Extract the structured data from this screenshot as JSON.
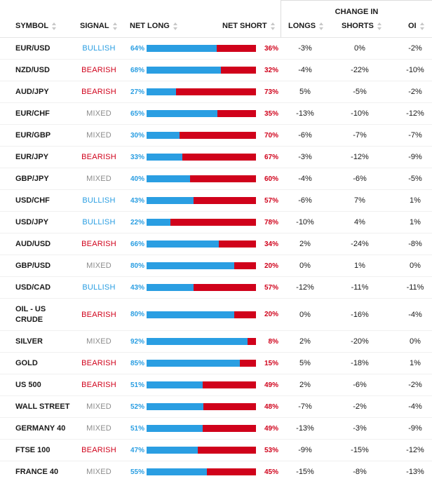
{
  "header": {
    "change_in": "CHANGE IN",
    "symbol": "SYMBOL",
    "signal": "SIGNAL",
    "net_long": "NET LONG",
    "net_short": "NET SHORT",
    "longs": "LONGS",
    "shorts": "SHORTS",
    "oi": "OI"
  },
  "colors": {
    "long": "#2a9ee2",
    "short": "#d0021b",
    "mixed": "#8c8c8c"
  },
  "rows": [
    {
      "symbol": "EUR/USD",
      "signal": "BULLISH",
      "net_long": "64%",
      "net_short": "36%",
      "long_pct": 64,
      "longs": "-3%",
      "shorts": "0%",
      "oi": "-2%"
    },
    {
      "symbol": "NZD/USD",
      "signal": "BEARISH",
      "net_long": "68%",
      "net_short": "32%",
      "long_pct": 68,
      "longs": "-4%",
      "shorts": "-22%",
      "oi": "-10%"
    },
    {
      "symbol": "AUD/JPY",
      "signal": "BEARISH",
      "net_long": "27%",
      "net_short": "73%",
      "long_pct": 27,
      "longs": "5%",
      "shorts": "-5%",
      "oi": "-2%"
    },
    {
      "symbol": "EUR/CHF",
      "signal": "MIXED",
      "net_long": "65%",
      "net_short": "35%",
      "long_pct": 65,
      "longs": "-13%",
      "shorts": "-10%",
      "oi": "-12%"
    },
    {
      "symbol": "EUR/GBP",
      "signal": "MIXED",
      "net_long": "30%",
      "net_short": "70%",
      "long_pct": 30,
      "longs": "-6%",
      "shorts": "-7%",
      "oi": "-7%"
    },
    {
      "symbol": "EUR/JPY",
      "signal": "BEARISH",
      "net_long": "33%",
      "net_short": "67%",
      "long_pct": 33,
      "longs": "-3%",
      "shorts": "-12%",
      "oi": "-9%"
    },
    {
      "symbol": "GBP/JPY",
      "signal": "MIXED",
      "net_long": "40%",
      "net_short": "60%",
      "long_pct": 40,
      "longs": "-4%",
      "shorts": "-6%",
      "oi": "-5%"
    },
    {
      "symbol": "USD/CHF",
      "signal": "BULLISH",
      "net_long": "43%",
      "net_short": "57%",
      "long_pct": 43,
      "longs": "-6%",
      "shorts": "7%",
      "oi": "1%"
    },
    {
      "symbol": "USD/JPY",
      "signal": "BULLISH",
      "net_long": "22%",
      "net_short": "78%",
      "long_pct": 22,
      "longs": "-10%",
      "shorts": "4%",
      "oi": "1%"
    },
    {
      "symbol": "AUD/USD",
      "signal": "BEARISH",
      "net_long": "66%",
      "net_short": "34%",
      "long_pct": 66,
      "longs": "2%",
      "shorts": "-24%",
      "oi": "-8%"
    },
    {
      "symbol": "GBP/USD",
      "signal": "MIXED",
      "net_long": "80%",
      "net_short": "20%",
      "long_pct": 80,
      "longs": "0%",
      "shorts": "1%",
      "oi": "0%"
    },
    {
      "symbol": "USD/CAD",
      "signal": "BULLISH",
      "net_long": "43%",
      "net_short": "57%",
      "long_pct": 43,
      "longs": "-12%",
      "shorts": "-11%",
      "oi": "-11%"
    },
    {
      "symbol": "OIL - US CRUDE",
      "signal": "BEARISH",
      "net_long": "80%",
      "net_short": "20%",
      "long_pct": 80,
      "longs": "0%",
      "shorts": "-16%",
      "oi": "-4%"
    },
    {
      "symbol": "SILVER",
      "signal": "MIXED",
      "net_long": "92%",
      "net_short": "8%",
      "long_pct": 92,
      "longs": "2%",
      "shorts": "-20%",
      "oi": "0%"
    },
    {
      "symbol": "GOLD",
      "signal": "BEARISH",
      "net_long": "85%",
      "net_short": "15%",
      "long_pct": 85,
      "longs": "5%",
      "shorts": "-18%",
      "oi": "1%"
    },
    {
      "symbol": "US 500",
      "signal": "BEARISH",
      "net_long": "51%",
      "net_short": "49%",
      "long_pct": 51,
      "longs": "2%",
      "shorts": "-6%",
      "oi": "-2%"
    },
    {
      "symbol": "WALL STREET",
      "signal": "MIXED",
      "net_long": "52%",
      "net_short": "48%",
      "long_pct": 52,
      "longs": "-7%",
      "shorts": "-2%",
      "oi": "-4%"
    },
    {
      "symbol": "GERMANY 40",
      "signal": "MIXED",
      "net_long": "51%",
      "net_short": "49%",
      "long_pct": 51,
      "longs": "-13%",
      "shorts": "-3%",
      "oi": "-9%"
    },
    {
      "symbol": "FTSE 100",
      "signal": "BEARISH",
      "net_long": "47%",
      "net_short": "53%",
      "long_pct": 47,
      "longs": "-9%",
      "shorts": "-15%",
      "oi": "-12%"
    },
    {
      "symbol": "FRANCE 40",
      "signal": "MIXED",
      "net_long": "55%",
      "net_short": "45%",
      "long_pct": 55,
      "longs": "-15%",
      "shorts": "-8%",
      "oi": "-13%"
    }
  ]
}
